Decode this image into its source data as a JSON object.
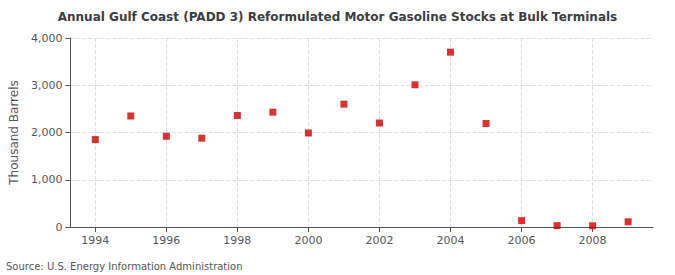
{
  "chart_data": {
    "type": "scatter",
    "title": "Annual Gulf Coast (PADD 3) Reformulated Motor Gasoline Stocks at Bulk Terminals",
    "ylabel": "Thousand Barrels",
    "annotation": "Source: U.S. Energy Information Administration",
    "x": [
      1994,
      1995,
      1996,
      1997,
      1998,
      1999,
      2000,
      2001,
      2002,
      2003,
      2004,
      2005,
      2006,
      2007,
      2008,
      2009
    ],
    "values": [
      1850,
      2350,
      1920,
      1880,
      2360,
      2430,
      1990,
      2600,
      2200,
      3010,
      3700,
      2190,
      135,
      30,
      25,
      110
    ],
    "color": "#cc0000",
    "marker": "square",
    "xlim": [
      1993.3,
      2009.7
    ],
    "xticks": [
      1994,
      1996,
      1998,
      2000,
      2002,
      2004,
      2006,
      2008
    ],
    "ylim": [
      0,
      4000
    ],
    "yticks": [
      0,
      {
        "value": 1000,
        "label": "1,000"
      },
      {
        "value": 2000,
        "label": "2,000"
      },
      {
        "value": 3000,
        "label": "3,000"
      },
      {
        "value": 4000,
        "label": "4,000"
      }
    ],
    "grid": true
  }
}
